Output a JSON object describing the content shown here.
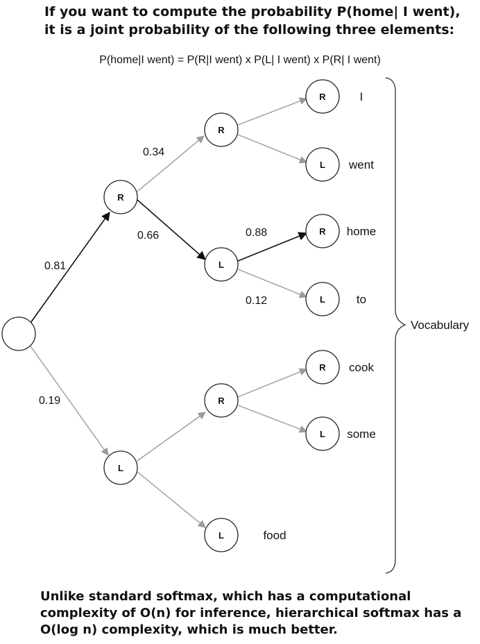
{
  "title": {
    "line1": "If you want to compute the probability P(home| I went),",
    "line2": "it is a joint probability of the following three elements:"
  },
  "formula": "P(home|I went) = P(R|I went) x P(L| I went) x P(R| I went)",
  "tree": {
    "root": {
      "label": ""
    },
    "level1": [
      {
        "label": "R",
        "edge_prob": "0.81"
      },
      {
        "label": "L",
        "edge_prob": "0.19"
      }
    ],
    "level2": [
      {
        "label": "R",
        "edge_prob": "0.34"
      },
      {
        "label": "L",
        "edge_prob": "0.66"
      },
      {
        "label": "R",
        "edge_prob": ""
      },
      {
        "label": "L",
        "edge_prob": ""
      }
    ],
    "leaves": [
      {
        "label": "R",
        "word": "I",
        "edge_prob": ""
      },
      {
        "label": "L",
        "word": "went",
        "edge_prob": ""
      },
      {
        "label": "R",
        "word": "home",
        "edge_prob": "0.88"
      },
      {
        "label": "L",
        "word": "to",
        "edge_prob": "0.12"
      },
      {
        "label": "R",
        "word": "cook",
        "edge_prob": ""
      },
      {
        "label": "L",
        "word": "some",
        "edge_prob": ""
      },
      {
        "label": "L",
        "word": "food",
        "edge_prob": ""
      }
    ],
    "brace_label": "Vocabulary"
  },
  "colors": {
    "highlight_edge": "#111111",
    "normal_edge": "#9a9a9a"
  },
  "footer": {
    "line1": "Unlike standard softmax, which has a computational",
    "line2": "complexity of O(n) for inference, hierarchical softmax has a",
    "line3": "O(log n) complexity, which is much better."
  }
}
